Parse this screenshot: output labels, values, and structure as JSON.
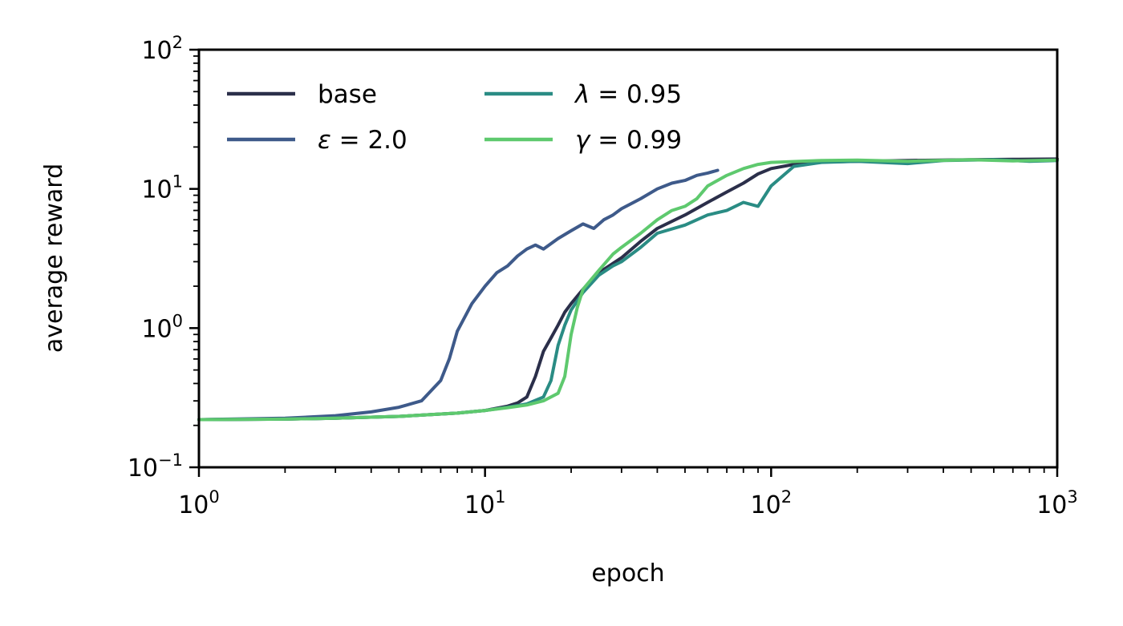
{
  "chart_data": {
    "type": "line",
    "xlabel": "epoch",
    "ylabel": "average reward",
    "xscale": "log",
    "yscale": "log",
    "xlim": [
      1,
      1000
    ],
    "ylim": [
      0.1,
      100
    ],
    "x_ticks": [
      {
        "base": "10",
        "exp": "0",
        "value": 1
      },
      {
        "base": "10",
        "exp": "1",
        "value": 10
      },
      {
        "base": "10",
        "exp": "2",
        "value": 100
      },
      {
        "base": "10",
        "exp": "3",
        "value": 1000
      }
    ],
    "y_ticks": [
      {
        "base": "10",
        "exp": "−1",
        "value": 0.1
      },
      {
        "base": "10",
        "exp": "0",
        "value": 1
      },
      {
        "base": "10",
        "exp": "1",
        "value": 10
      },
      {
        "base": "10",
        "exp": "2",
        "value": 100
      }
    ],
    "grid": false,
    "legend": {
      "placement": "top-left",
      "columns": 2
    },
    "series": [
      {
        "name": "base",
        "legend_symbol": "",
        "legend_rest": "base",
        "color": "#2b2f4a",
        "points": [
          [
            1,
            0.22
          ],
          [
            2,
            0.222
          ],
          [
            3,
            0.225
          ],
          [
            5,
            0.232
          ],
          [
            8,
            0.245
          ],
          [
            10,
            0.256
          ],
          [
            12,
            0.275
          ],
          [
            13,
            0.29
          ],
          [
            14,
            0.32
          ],
          [
            15,
            0.45
          ],
          [
            16,
            0.68
          ],
          [
            17,
            0.85
          ],
          [
            18,
            1.05
          ],
          [
            19,
            1.3
          ],
          [
            20,
            1.5
          ],
          [
            22,
            1.9
          ],
          [
            25,
            2.5
          ],
          [
            30,
            3.2
          ],
          [
            35,
            4.2
          ],
          [
            40,
            5.2
          ],
          [
            50,
            6.5
          ],
          [
            60,
            8.0
          ],
          [
            70,
            9.5
          ],
          [
            80,
            11.0
          ],
          [
            90,
            12.8
          ],
          [
            100,
            14.0
          ],
          [
            120,
            15.0
          ],
          [
            150,
            15.6
          ],
          [
            200,
            15.8
          ],
          [
            300,
            16.0
          ],
          [
            500,
            16.2
          ],
          [
            700,
            16.3
          ],
          [
            1000,
            16.4
          ]
        ]
      },
      {
        "name": "ε = 2.0",
        "legend_symbol": "ε",
        "legend_rest": " = 2.0",
        "color": "#3e5a8a",
        "points": [
          [
            1,
            0.22
          ],
          [
            2,
            0.225
          ],
          [
            3,
            0.235
          ],
          [
            4,
            0.25
          ],
          [
            5,
            0.27
          ],
          [
            6,
            0.3
          ],
          [
            7,
            0.42
          ],
          [
            7.5,
            0.6
          ],
          [
            8,
            0.95
          ],
          [
            9,
            1.5
          ],
          [
            10,
            2.0
          ],
          [
            11,
            2.5
          ],
          [
            12,
            2.8
          ],
          [
            13,
            3.3
          ],
          [
            14,
            3.7
          ],
          [
            15,
            3.95
          ],
          [
            16,
            3.7
          ],
          [
            18,
            4.4
          ],
          [
            20,
            5.0
          ],
          [
            22,
            5.6
          ],
          [
            24,
            5.2
          ],
          [
            26,
            6.0
          ],
          [
            28,
            6.5
          ],
          [
            30,
            7.2
          ],
          [
            35,
            8.5
          ],
          [
            40,
            10.0
          ],
          [
            45,
            11.0
          ],
          [
            50,
            11.5
          ],
          [
            55,
            12.5
          ],
          [
            60,
            13.0
          ],
          [
            65,
            13.6
          ]
        ]
      },
      {
        "name": "λ = 0.95",
        "legend_symbol": "λ",
        "legend_rest": " = 0.95",
        "color": "#2a8c84",
        "points": [
          [
            1,
            0.22
          ],
          [
            2,
            0.222
          ],
          [
            3,
            0.225
          ],
          [
            5,
            0.232
          ],
          [
            8,
            0.245
          ],
          [
            10,
            0.256
          ],
          [
            12,
            0.27
          ],
          [
            14,
            0.285
          ],
          [
            16,
            0.32
          ],
          [
            17,
            0.42
          ],
          [
            18,
            0.75
          ],
          [
            19,
            1.05
          ],
          [
            20,
            1.35
          ],
          [
            22,
            1.8
          ],
          [
            25,
            2.4
          ],
          [
            28,
            2.8
          ],
          [
            30,
            3.0
          ],
          [
            35,
            3.8
          ],
          [
            40,
            4.8
          ],
          [
            50,
            5.5
          ],
          [
            60,
            6.5
          ],
          [
            70,
            7.0
          ],
          [
            80,
            8.0
          ],
          [
            90,
            7.5
          ],
          [
            100,
            10.5
          ],
          [
            120,
            14.5
          ],
          [
            150,
            15.5
          ],
          [
            200,
            15.8
          ],
          [
            300,
            15.2
          ],
          [
            400,
            16.0
          ],
          [
            600,
            16.2
          ],
          [
            800,
            15.8
          ],
          [
            1000,
            16.0
          ]
        ]
      },
      {
        "name": "γ = 0.99",
        "legend_symbol": "γ",
        "legend_rest": " = 0.99",
        "color": "#5ec96e",
        "points": [
          [
            1,
            0.22
          ],
          [
            2,
            0.222
          ],
          [
            3,
            0.225
          ],
          [
            5,
            0.232
          ],
          [
            8,
            0.245
          ],
          [
            10,
            0.256
          ],
          [
            12,
            0.268
          ],
          [
            14,
            0.28
          ],
          [
            16,
            0.3
          ],
          [
            18,
            0.34
          ],
          [
            19,
            0.45
          ],
          [
            20,
            0.9
          ],
          [
            21,
            1.4
          ],
          [
            22,
            1.9
          ],
          [
            25,
            2.6
          ],
          [
            28,
            3.4
          ],
          [
            30,
            3.8
          ],
          [
            35,
            4.8
          ],
          [
            40,
            6.0
          ],
          [
            45,
            7.0
          ],
          [
            50,
            7.5
          ],
          [
            55,
            8.5
          ],
          [
            60,
            10.5
          ],
          [
            65,
            11.5
          ],
          [
            70,
            12.5
          ],
          [
            80,
            14.0
          ],
          [
            90,
            15.0
          ],
          [
            100,
            15.5
          ],
          [
            150,
            16.0
          ],
          [
            200,
            16.1
          ],
          [
            300,
            15.8
          ],
          [
            500,
            16.2
          ],
          [
            700,
            15.9
          ],
          [
            1000,
            16.1
          ]
        ]
      }
    ]
  }
}
